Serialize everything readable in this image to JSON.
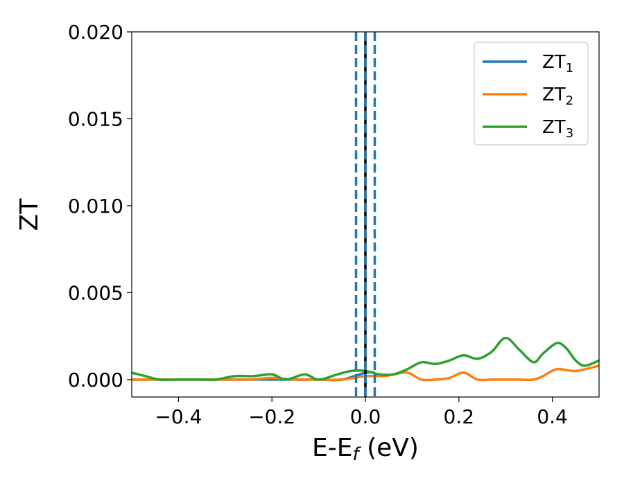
{
  "chart_data": {
    "type": "line",
    "xlabel": "E-E",
    "xlabel_sub": "f",
    "xlabel_unit": " (eV)",
    "ylabel": "ZT",
    "xlim": [
      -0.5,
      0.5
    ],
    "ylim": [
      -0.001,
      0.02
    ],
    "xticks": [
      -0.4,
      -0.2,
      0.0,
      0.2,
      0.4
    ],
    "xtick_labels": [
      "−0.4",
      "−0.2",
      "0.0",
      "0.2",
      "0.4"
    ],
    "yticks": [
      0.0,
      0.005,
      0.01,
      0.015,
      0.02
    ],
    "ytick_labels": [
      "0.000",
      "0.005",
      "0.010",
      "0.015",
      "0.020"
    ],
    "grid": false,
    "legend_position": "top-right",
    "vlines": [
      {
        "x": 0.0,
        "color": "#000000",
        "style": "solid"
      },
      {
        "x": -0.02,
        "color": "#1f77b4",
        "style": "dashed"
      },
      {
        "x": 0.0,
        "color": "#1f77b4",
        "style": "dashed"
      },
      {
        "x": 0.02,
        "color": "#1f77b4",
        "style": "dashed"
      }
    ],
    "series": [
      {
        "name": "ZT",
        "sub": "1",
        "color": "#1f77b4",
        "x": [
          -0.5,
          -0.45,
          -0.4,
          -0.35,
          -0.3,
          -0.25,
          -0.2,
          -0.15,
          -0.1,
          -0.05,
          0.0,
          0.02
        ],
        "y": [
          0.0,
          0.0,
          0.0,
          0.0,
          0.0,
          0.0,
          0.0,
          0.0,
          0.0,
          0.0,
          0.0004,
          0.0004
        ]
      },
      {
        "name": "ZT",
        "sub": "2",
        "color": "#ff7f0e",
        "x": [
          -0.5,
          -0.45,
          -0.4,
          -0.35,
          -0.3,
          -0.25,
          -0.2,
          -0.15,
          -0.1,
          -0.05,
          0.0,
          0.04,
          0.06,
          0.09,
          0.12,
          0.15,
          0.18,
          0.21,
          0.24,
          0.27,
          0.3,
          0.33,
          0.36,
          0.38,
          0.41,
          0.45,
          0.5
        ],
        "y": [
          0.0,
          0.0,
          0.0,
          0.0,
          0.0,
          0.0,
          0.0001,
          0.0,
          0.0,
          0.0,
          0.0002,
          0.0002,
          0.0003,
          0.0004,
          0.0,
          0.0,
          0.0001,
          0.0004,
          0.0,
          0.0,
          0.0,
          0.0,
          0.0,
          0.0002,
          0.0006,
          0.0005,
          0.0008
        ]
      },
      {
        "name": "ZT",
        "sub": "3",
        "color": "#2ca02c",
        "x": [
          -0.5,
          -0.47,
          -0.44,
          -0.4,
          -0.35,
          -0.32,
          -0.28,
          -0.24,
          -0.2,
          -0.17,
          -0.13,
          -0.1,
          -0.06,
          -0.03,
          0.0,
          0.03,
          0.06,
          0.09,
          0.12,
          0.15,
          0.18,
          0.21,
          0.24,
          0.27,
          0.3,
          0.33,
          0.36,
          0.38,
          0.41,
          0.43,
          0.45,
          0.47,
          0.5
        ],
        "y": [
          0.0004,
          0.0002,
          0.0,
          0.0,
          0.0,
          0.0,
          0.0002,
          0.0002,
          0.0003,
          0.0,
          0.0003,
          0.0,
          0.0003,
          0.0005,
          0.0005,
          0.0003,
          0.0003,
          0.0006,
          0.001,
          0.0009,
          0.0011,
          0.0014,
          0.0012,
          0.0016,
          0.0024,
          0.0017,
          0.001,
          0.0015,
          0.0021,
          0.0018,
          0.0011,
          0.0008,
          0.0011
        ]
      }
    ]
  }
}
